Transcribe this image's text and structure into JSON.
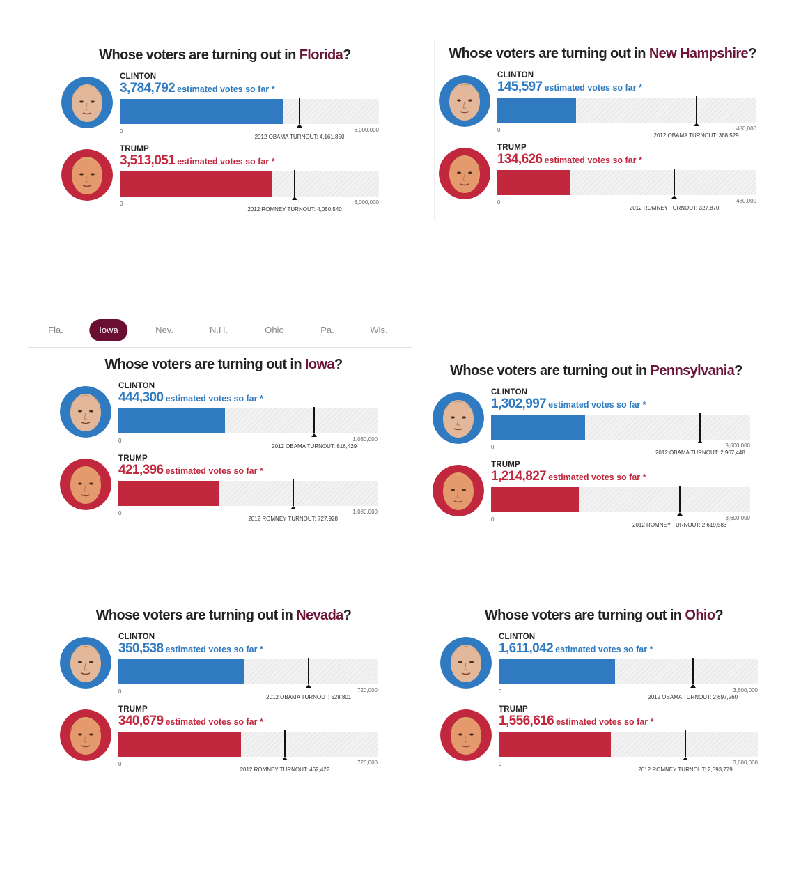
{
  "nav_tabs": [
    {
      "label": "Fla.",
      "active": false
    },
    {
      "label": "Iowa",
      "active": true
    },
    {
      "label": "Nev.",
      "active": false
    },
    {
      "label": "N.H.",
      "active": false
    },
    {
      "label": "Ohio",
      "active": false
    },
    {
      "label": "Pa.",
      "active": false
    },
    {
      "label": "Wis.",
      "active": false
    }
  ],
  "colors": {
    "clinton": "#2f7ac0",
    "trump": "#c1273d",
    "state_accent": "#6b1538",
    "active_tab": "#6b0f32"
  },
  "chart_data": [
    {
      "type": "bar",
      "title_prefix": "Whose voters are turning out in ",
      "state": "Florida",
      "title_suffix": "?",
      "clinton": {
        "label": "CLINTON",
        "votes": 3784792,
        "votes_text": "3,784,792",
        "suffix": "estimated votes so far *",
        "axis_min": "0",
        "axis_max": 6000000,
        "axis_max_text": "6,000,000",
        "turnout_label": "2012 OBAMA TURNOUT: 4,161,850",
        "turnout_value": 4161850
      },
      "trump": {
        "label": "TRUMP",
        "votes": 3513051,
        "votes_text": "3,513,051",
        "suffix": "estimated votes so far *",
        "axis_min": "0",
        "axis_max": 6000000,
        "axis_max_text": "6,000,000",
        "turnout_label": "2012 ROMNEY TURNOUT: 4,050,540",
        "turnout_value": 4050540
      }
    },
    {
      "type": "bar",
      "title_prefix": "Whose voters are turning out in ",
      "state": "New Hampshire",
      "title_suffix": "?",
      "clinton": {
        "label": "CLINTON",
        "votes": 145597,
        "votes_text": "145,597",
        "suffix": "estimated votes so far *",
        "axis_min": "0",
        "axis_max": 480000,
        "axis_max_text": "480,000",
        "turnout_label": "2012 OBAMA TURNOUT: 368,529",
        "turnout_value": 368529
      },
      "trump": {
        "label": "TRUMP",
        "votes": 134626,
        "votes_text": "134,626",
        "suffix": "estimated votes so far *",
        "axis_min": "0",
        "axis_max": 480000,
        "axis_max_text": "480,000",
        "turnout_label": "2012 ROMNEY TURNOUT: 327,870",
        "turnout_value": 327870
      }
    },
    {
      "type": "bar",
      "title_prefix": "Whose voters are turning out in ",
      "state": "Iowa",
      "title_suffix": "?",
      "clinton": {
        "label": "CLINTON",
        "votes": 444300,
        "votes_text": "444,300",
        "suffix": "estimated votes so far *",
        "axis_min": "0",
        "axis_max": 1080000,
        "axis_max_text": "1,080,000",
        "turnout_label": "2012 OBAMA TURNOUT: 816,429",
        "turnout_value": 816429
      },
      "trump": {
        "label": "TRUMP",
        "votes": 421396,
        "votes_text": "421,396",
        "suffix": "estimated votes so far *",
        "axis_min": "0",
        "axis_max": 1080000,
        "axis_max_text": "1,080,000",
        "turnout_label": "2012 ROMNEY TURNOUT: 727,928",
        "turnout_value": 727928
      }
    },
    {
      "type": "bar",
      "title_prefix": "Whose voters are turning out in ",
      "state": "Pennsylvania",
      "title_suffix": "?",
      "clinton": {
        "label": "CLINTON",
        "votes": 1302997,
        "votes_text": "1,302,997",
        "suffix": "estimated votes so far *",
        "axis_min": "0",
        "axis_max": 3600000,
        "axis_max_text": "3,600,000",
        "turnout_label": "2012 OBAMA TURNOUT: 2,907,448",
        "turnout_value": 2907448
      },
      "trump": {
        "label": "TRUMP",
        "votes": 1214827,
        "votes_text": "1,214,827",
        "suffix": "estimated votes so far *",
        "axis_min": "0",
        "axis_max": 3600000,
        "axis_max_text": "3,600,000",
        "turnout_label": "2012 ROMNEY TURNOUT: 2,619,583",
        "turnout_value": 2619583
      }
    },
    {
      "type": "bar",
      "title_prefix": "Whose voters are turning out in ",
      "state": "Nevada",
      "title_suffix": "?",
      "clinton": {
        "label": "CLINTON",
        "votes": 350538,
        "votes_text": "350,538",
        "suffix": "estimated votes so far *",
        "axis_min": "0",
        "axis_max": 720000,
        "axis_max_text": "720,000",
        "turnout_label": "2012 OBAMA TURNOUT: 528,801",
        "turnout_value": 528801
      },
      "trump": {
        "label": "TRUMP",
        "votes": 340679,
        "votes_text": "340,679",
        "suffix": "estimated votes so far *",
        "axis_min": "0",
        "axis_max": 720000,
        "axis_max_text": "720,000",
        "turnout_label": "2012 ROMNEY TURNOUT: 462,422",
        "turnout_value": 462422
      }
    },
    {
      "type": "bar",
      "title_prefix": "Whose voters are turning out in ",
      "state": "Ohio",
      "title_suffix": "?",
      "clinton": {
        "label": "CLINTON",
        "votes": 1611042,
        "votes_text": "1,611,042",
        "suffix": "estimated votes so far *",
        "axis_min": "0",
        "axis_max": 3600000,
        "axis_max_text": "3,600,000",
        "turnout_label": "2012 OBAMA TURNOUT: 2,697,260",
        "turnout_value": 2697260
      },
      "trump": {
        "label": "TRUMP",
        "votes": 1556616,
        "votes_text": "1,556,616",
        "suffix": "estimated votes so far *",
        "axis_min": "0",
        "axis_max": 3600000,
        "axis_max_text": "3,600,000",
        "turnout_label": "2012 ROMNEY TURNOUT: 2,593,779",
        "turnout_value": 2593779
      }
    }
  ]
}
